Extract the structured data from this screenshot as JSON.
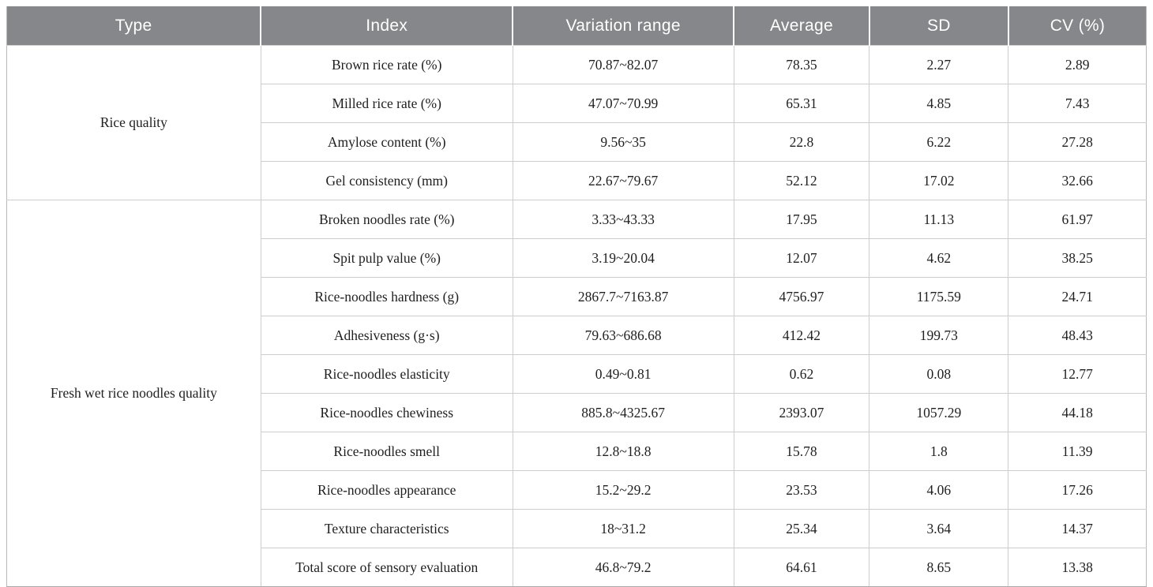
{
  "table": {
    "columns": [
      "Type",
      "Index",
      "Variation range",
      "Average",
      "SD",
      "CV (%)"
    ],
    "groups": [
      {
        "type": "Rice quality",
        "rows": [
          {
            "index": "Brown rice rate (%)",
            "variation_range": "70.87~82.07",
            "average": "78.35",
            "sd": "2.27",
            "cv": "2.89"
          },
          {
            "index": "Milled rice rate (%)",
            "variation_range": "47.07~70.99",
            "average": "65.31",
            "sd": "4.85",
            "cv": "7.43"
          },
          {
            "index": "Amylose content (%)",
            "variation_range": "9.56~35",
            "average": "22.8",
            "sd": "6.22",
            "cv": "27.28"
          },
          {
            "index": "Gel consistency (mm)",
            "variation_range": "22.67~79.67",
            "average": "52.12",
            "sd": "17.02",
            "cv": "32.66"
          }
        ]
      },
      {
        "type": "Fresh wet rice noodles quality",
        "rows": [
          {
            "index": "Broken noodles rate (%)",
            "variation_range": "3.33~43.33",
            "average": "17.95",
            "sd": "11.13",
            "cv": "61.97"
          },
          {
            "index": "Spit pulp value (%)",
            "variation_range": "3.19~20.04",
            "average": "12.07",
            "sd": "4.62",
            "cv": "38.25"
          },
          {
            "index": "Rice-noodles hardness (g)",
            "variation_range": "2867.7~7163.87",
            "average": "4756.97",
            "sd": "1175.59",
            "cv": "24.71"
          },
          {
            "index": "Adhesiveness (g·s)",
            "variation_range": "79.63~686.68",
            "average": "412.42",
            "sd": "199.73",
            "cv": "48.43"
          },
          {
            "index": "Rice-noodles elasticity",
            "variation_range": "0.49~0.81",
            "average": "0.62",
            "sd": "0.08",
            "cv": "12.77"
          },
          {
            "index": "Rice-noodles chewiness",
            "variation_range": "885.8~4325.67",
            "average": "2393.07",
            "sd": "1057.29",
            "cv": "44.18"
          },
          {
            "index": "Rice-noodles smell",
            "variation_range": "12.8~18.8",
            "average": "15.78",
            "sd": "1.8",
            "cv": "11.39"
          },
          {
            "index": "Rice-noodles appearance",
            "variation_range": "15.2~29.2",
            "average": "23.53",
            "sd": "4.06",
            "cv": "17.26"
          },
          {
            "index": "Texture characteristics",
            "variation_range": "18~31.2",
            "average": "25.34",
            "sd": "3.64",
            "cv": "14.37"
          },
          {
            "index": "Total score of sensory evaluation",
            "variation_range": "46.8~79.2",
            "average": "64.61",
            "sd": "8.65",
            "cv": "13.38"
          }
        ]
      }
    ]
  },
  "colors": {
    "header_bg": "#85878a",
    "header_text": "#ffffff",
    "grid_line": "#cdcdcd",
    "outer_border": "#a9a9a9",
    "body_text": "#1f1f1f"
  }
}
